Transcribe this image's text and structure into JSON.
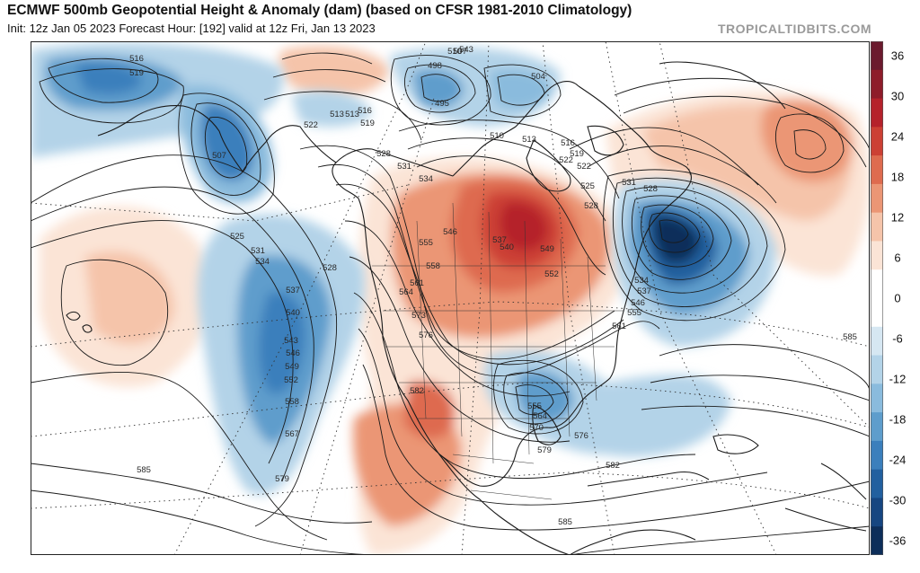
{
  "header": {
    "title": "ECMWF 500mb Geopotential Height & Anomaly (dam) (based on CFSR 1981-2010 Climatology)",
    "subtitle": "Init: 12z Jan 05 2023   Forecast Hour: [192]   valid at 12z Fri, Jan 13 2023",
    "brand": "TROPICALTIDBITS.COM"
  },
  "colorbar": {
    "ticks": [
      "36",
      "30",
      "24",
      "18",
      "12",
      "6",
      "0",
      "-6",
      "-12",
      "-18",
      "-24",
      "-30",
      "-36"
    ],
    "colors": [
      "#6b1a2e",
      "#8e1c2a",
      "#b5222b",
      "#cc4034",
      "#de6b4f",
      "#eb9675",
      "#f5c4aa",
      "#fbe4d6",
      "#ffffff",
      "#ffffff",
      "#d6e7f2",
      "#b3d3e8",
      "#8abbdd",
      "#5e9dcc",
      "#3b7fbc",
      "#22609f",
      "#164681",
      "#0d2e5a"
    ]
  },
  "map": {
    "height_labels": [
      "516",
      "519",
      "507",
      "498",
      "510",
      "543",
      "504",
      "495",
      "513",
      "516",
      "519",
      "522",
      "507",
      "510",
      "513",
      "516",
      "519",
      "522",
      "528",
      "531",
      "534",
      "525",
      "528",
      "546",
      "537",
      "540",
      "549",
      "552",
      "555",
      "558",
      "561",
      "564",
      "573",
      "576",
      "525",
      "531",
      "534",
      "528",
      "537",
      "540",
      "543",
      "546",
      "549",
      "552",
      "558",
      "567",
      "579",
      "585",
      "582",
      "555",
      "564",
      "570",
      "576",
      "579",
      "582",
      "585",
      "534",
      "537",
      "546",
      "555",
      "561",
      "585",
      "528",
      "531",
      "522",
      "513"
    ]
  }
}
